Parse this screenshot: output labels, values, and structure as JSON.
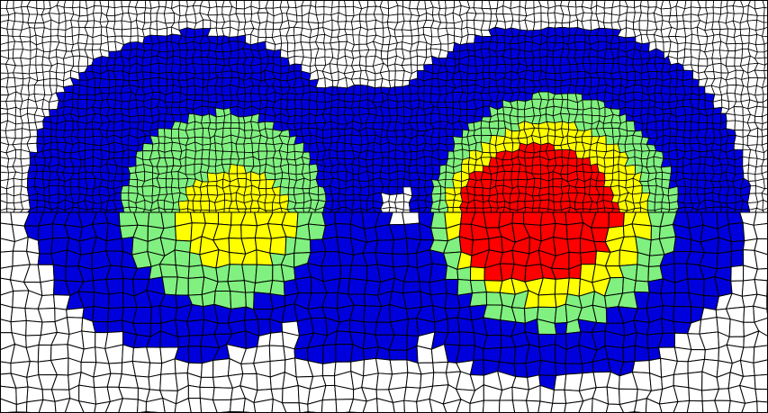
{
  "figure": {
    "kind": "quadrilateral-mesh-contour",
    "background": "#ffffff",
    "mesh_line_color": "#000000",
    "levels": [
      {
        "name": "background",
        "color": "#ffffff"
      },
      {
        "name": "level-1",
        "color": "#0000dd"
      },
      {
        "name": "level-2",
        "color": "#80f080"
      },
      {
        "name": "level-3",
        "color": "#ffff00"
      },
      {
        "name": "level-4",
        "color": "#ff0000"
      }
    ],
    "lobes": [
      {
        "name": "left-lobe",
        "peak_level": 3
      },
      {
        "name": "right-lobe",
        "peak_level": 4
      }
    ],
    "mesh_density": {
      "upper": "fine",
      "lower": "coarse"
    }
  }
}
